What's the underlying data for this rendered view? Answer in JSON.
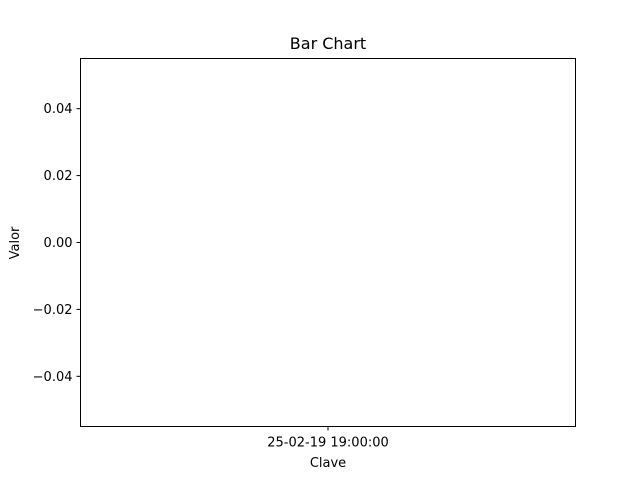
{
  "chart_data": {
    "type": "bar",
    "title": "Bar Chart",
    "xlabel": "Clave",
    "ylabel": "Valor",
    "categories": [
      "25-02-19 19:00:00"
    ],
    "values": [
      0.0
    ],
    "ylim": [
      -0.055,
      0.055
    ],
    "yticks": [
      -0.04,
      -0.02,
      0.0,
      0.02,
      0.04
    ],
    "ytick_labels": [
      "−0.04",
      "−0.02",
      "0.00",
      "0.02",
      "0.04"
    ],
    "grid": false,
    "colors": {
      "bar": "#1f77b4",
      "axes": "#000000",
      "background": "#ffffff"
    }
  }
}
